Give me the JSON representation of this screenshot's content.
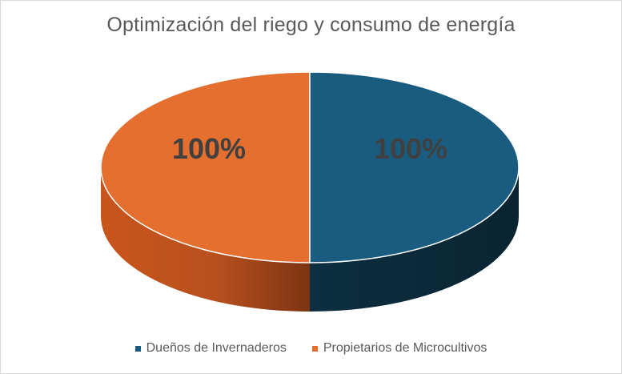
{
  "chart_data": {
    "type": "pie",
    "title": "Optimización del riego y consumo de energía",
    "categories": [
      "Dueños de Invernaderos",
      "Propietarios de Microcultivos"
    ],
    "values": [
      100,
      100
    ],
    "data_labels": [
      "100%",
      "100%"
    ],
    "colors": [
      "#1a5c80",
      "#e46f2f"
    ],
    "legend_position": "bottom",
    "style": "3d-pie"
  }
}
